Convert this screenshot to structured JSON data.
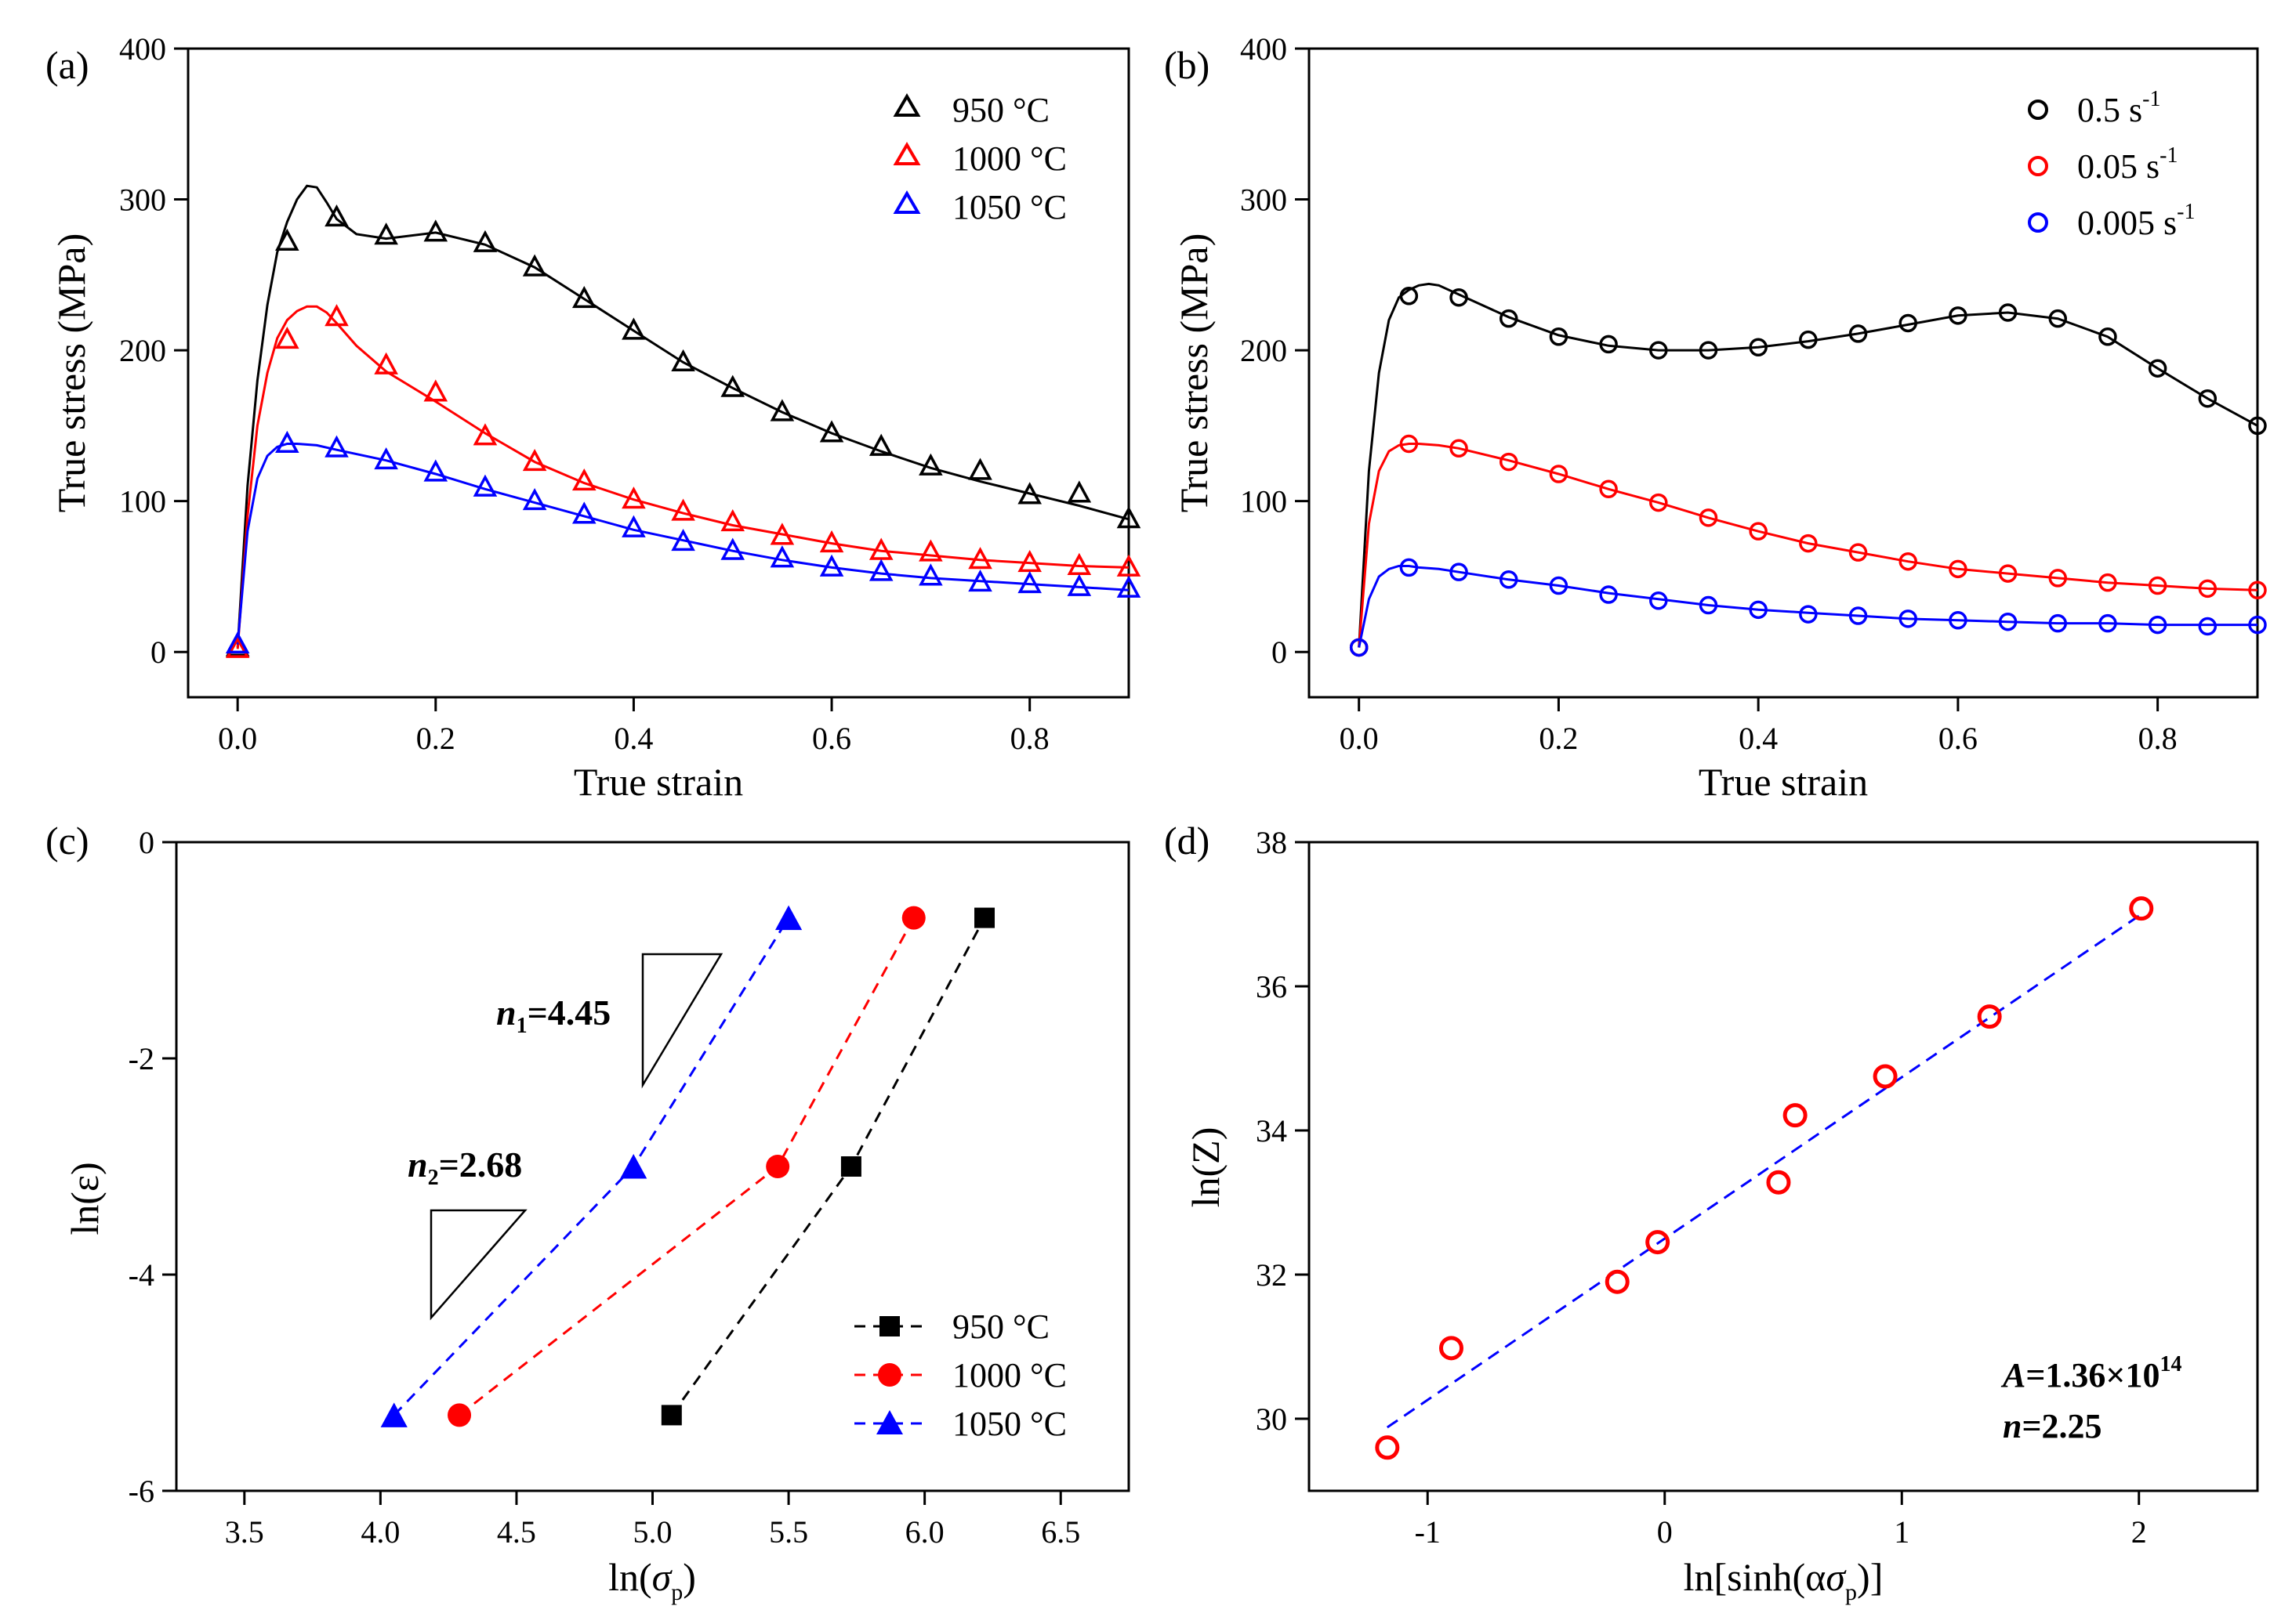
{
  "chart_data": [
    {
      "panel": "(a)",
      "type": "scatter",
      "xlabel": "True strain",
      "ylabel": "True stress (MPa)",
      "xlim": [
        -0.05,
        0.9
      ],
      "ylim": [
        -30,
        400
      ],
      "xticks": [
        "0.0",
        "0.2",
        "0.4",
        "0.6",
        "0.8"
      ],
      "yticks": [
        "0",
        "100",
        "200",
        "300",
        "400"
      ],
      "legend_position": "top-right",
      "marker": "triangle-open",
      "series": [
        {
          "name": "950 °C",
          "color": "#000000",
          "x": [
            0,
            0.05,
            0.1,
            0.15,
            0.2,
            0.25,
            0.3,
            0.35,
            0.4,
            0.45,
            0.5,
            0.55,
            0.6,
            0.65,
            0.7,
            0.75,
            0.8,
            0.85,
            0.9
          ],
          "y": [
            3,
            272,
            288,
            276,
            278,
            271,
            255,
            234,
            213,
            192,
            175,
            159,
            145,
            136,
            123,
            120,
            104,
            105,
            88
          ],
          "curve_x": [
            0,
            0.01,
            0.02,
            0.03,
            0.04,
            0.05,
            0.06,
            0.07,
            0.08,
            0.09,
            0.1,
            0.12,
            0.15,
            0.2,
            0.25,
            0.3,
            0.35,
            0.4,
            0.45,
            0.5,
            0.55,
            0.6,
            0.65,
            0.7,
            0.75,
            0.8,
            0.85,
            0.9
          ],
          "curve_y": [
            3,
            110,
            180,
            230,
            265,
            285,
            300,
            309,
            308,
            298,
            287,
            277,
            274,
            278,
            270,
            255,
            234,
            213,
            192,
            175,
            159,
            145,
            133,
            122,
            113,
            105,
            97,
            88
          ]
        },
        {
          "name": "1000 °C",
          "color": "#ff0000",
          "x": [
            0,
            0.05,
            0.1,
            0.15,
            0.2,
            0.25,
            0.3,
            0.35,
            0.4,
            0.45,
            0.5,
            0.55,
            0.6,
            0.65,
            0.7,
            0.75,
            0.8,
            0.85,
            0.9
          ],
          "y": [
            2,
            207,
            222,
            190,
            172,
            143,
            126,
            113,
            101,
            93,
            86,
            77,
            72,
            67,
            66,
            61,
            59,
            57,
            56
          ],
          "curve_x": [
            0,
            0.01,
            0.02,
            0.03,
            0.04,
            0.05,
            0.06,
            0.07,
            0.08,
            0.09,
            0.1,
            0.12,
            0.15,
            0.2,
            0.25,
            0.3,
            0.35,
            0.4,
            0.45,
            0.5,
            0.55,
            0.6,
            0.65,
            0.7,
            0.75,
            0.8,
            0.85,
            0.9
          ],
          "curve_y": [
            2,
            90,
            150,
            185,
            208,
            220,
            226,
            229,
            229,
            225,
            218,
            203,
            186,
            166,
            145,
            126,
            112,
            101,
            92,
            84,
            78,
            72,
            67,
            64,
            61,
            59,
            57,
            56
          ]
        },
        {
          "name": "1050 °C",
          "color": "#0000ff",
          "x": [
            0,
            0.05,
            0.1,
            0.15,
            0.2,
            0.25,
            0.3,
            0.35,
            0.4,
            0.45,
            0.5,
            0.55,
            0.6,
            0.65,
            0.7,
            0.75,
            0.8,
            0.85,
            0.9
          ],
          "y": [
            5,
            138,
            135,
            127,
            119,
            109,
            100,
            91,
            82,
            73,
            67,
            62,
            56,
            53,
            50,
            46,
            45,
            43,
            42
          ],
          "curve_x": [
            0,
            0.01,
            0.02,
            0.03,
            0.04,
            0.05,
            0.06,
            0.08,
            0.1,
            0.15,
            0.2,
            0.25,
            0.3,
            0.35,
            0.4,
            0.45,
            0.5,
            0.55,
            0.6,
            0.65,
            0.7,
            0.75,
            0.8,
            0.85,
            0.9
          ],
          "curve_y": [
            5,
            80,
            115,
            130,
            136,
            138,
            138,
            137,
            134,
            127,
            118,
            108,
            99,
            90,
            81,
            74,
            67,
            61,
            56,
            52,
            49,
            47,
            45,
            43,
            41
          ]
        }
      ]
    },
    {
      "panel": "(b)",
      "type": "scatter",
      "xlabel": "True strain",
      "ylabel": "True stress (MPa)",
      "xlim": [
        -0.05,
        0.9
      ],
      "ylim": [
        -30,
        400
      ],
      "xticks": [
        "0.0",
        "0.2",
        "0.4",
        "0.6",
        "0.8"
      ],
      "yticks": [
        "0",
        "100",
        "200",
        "300",
        "400"
      ],
      "legend_position": "top-right",
      "marker": "circle-open",
      "series": [
        {
          "name": "0.5 s",
          "unit_sup": "-1",
          "color": "#000000",
          "x": [
            0,
            0.05,
            0.1,
            0.15,
            0.2,
            0.25,
            0.3,
            0.35,
            0.4,
            0.45,
            0.5,
            0.55,
            0.6,
            0.65,
            0.7,
            0.75,
            0.8,
            0.85,
            0.9
          ],
          "y": [
            3,
            236,
            235,
            221,
            209,
            204,
            200,
            200,
            202,
            207,
            211,
            218,
            223,
            225,
            221,
            209,
            188,
            168,
            150
          ],
          "curve_x": [
            0,
            0.01,
            0.02,
            0.03,
            0.04,
            0.05,
            0.06,
            0.07,
            0.08,
            0.1,
            0.15,
            0.2,
            0.25,
            0.3,
            0.35,
            0.4,
            0.45,
            0.5,
            0.55,
            0.6,
            0.65,
            0.7,
            0.75,
            0.8,
            0.85,
            0.9
          ],
          "curve_y": [
            3,
            120,
            185,
            220,
            235,
            240,
            243,
            244,
            243,
            237,
            222,
            210,
            203,
            200,
            200,
            202,
            206,
            211,
            217,
            223,
            225,
            221,
            209,
            188,
            168,
            150
          ]
        },
        {
          "name": "0.05 s",
          "unit_sup": "-1",
          "color": "#ff0000",
          "x": [
            0,
            0.05,
            0.1,
            0.15,
            0.2,
            0.25,
            0.3,
            0.35,
            0.4,
            0.45,
            0.5,
            0.55,
            0.6,
            0.65,
            0.7,
            0.75,
            0.8,
            0.85,
            0.9
          ],
          "y": [
            3,
            138,
            135,
            126,
            118,
            108,
            99,
            89,
            80,
            72,
            66,
            60,
            55,
            52,
            49,
            46,
            44,
            42,
            41
          ],
          "curve_x": [
            0,
            0.01,
            0.02,
            0.03,
            0.04,
            0.05,
            0.06,
            0.08,
            0.1,
            0.15,
            0.2,
            0.25,
            0.3,
            0.35,
            0.4,
            0.45,
            0.5,
            0.55,
            0.6,
            0.65,
            0.7,
            0.75,
            0.8,
            0.85,
            0.9
          ],
          "curve_y": [
            3,
            85,
            120,
            133,
            137,
            138,
            138,
            137,
            135,
            127,
            118,
            108,
            99,
            89,
            80,
            72,
            66,
            60,
            55,
            52,
            49,
            46,
            44,
            42,
            41
          ]
        },
        {
          "name": "0.005 s",
          "unit_sup": "-1",
          "color": "#0000ff",
          "x": [
            0,
            0.05,
            0.1,
            0.15,
            0.2,
            0.25,
            0.3,
            0.35,
            0.4,
            0.45,
            0.5,
            0.55,
            0.6,
            0.65,
            0.7,
            0.75,
            0.8,
            0.85,
            0.9
          ],
          "y": [
            3,
            56,
            53,
            48,
            44,
            38,
            34,
            31,
            28,
            25,
            24,
            22,
            21,
            20,
            19,
            19,
            18,
            17,
            18
          ],
          "curve_x": [
            0,
            0.01,
            0.02,
            0.03,
            0.04,
            0.05,
            0.06,
            0.08,
            0.1,
            0.15,
            0.2,
            0.25,
            0.3,
            0.35,
            0.4,
            0.45,
            0.5,
            0.55,
            0.6,
            0.65,
            0.7,
            0.75,
            0.8,
            0.85,
            0.9
          ],
          "curve_y": [
            3,
            35,
            50,
            55,
            57,
            57,
            56,
            55,
            53,
            48,
            44,
            39,
            35,
            31,
            28,
            26,
            24,
            22,
            21,
            20,
            19,
            19,
            18,
            18,
            18
          ]
        }
      ]
    },
    {
      "panel": "(c)",
      "type": "scatter",
      "xlabel_pre": "ln(",
      "xlabel_sym": "σ",
      "xlabel_sub": "p",
      "xlabel_post": ")",
      "ylabel": "ln(ε)",
      "xlim": [
        3.25,
        6.75
      ],
      "ylim": [
        -6,
        0
      ],
      "xticks": [
        "3.5",
        "4.0",
        "4.5",
        "5.0",
        "5.5",
        "6.0",
        "6.5"
      ],
      "yticks": [
        "0",
        "-2",
        "-4",
        "-6"
      ],
      "legend_position": "bottom-right",
      "series": [
        {
          "name": "950 °C",
          "color": "#000000",
          "marker": "square",
          "x": [
            5.07,
            5.73,
            6.22
          ],
          "y": [
            -5.3,
            -3.0,
            -0.7
          ]
        },
        {
          "name": "1000 °C",
          "color": "#ff0000",
          "marker": "circle",
          "x": [
            4.29,
            5.46,
            5.96
          ],
          "y": [
            -5.3,
            -3.0,
            -0.7
          ]
        },
        {
          "name": "1050 °C",
          "color": "#0000ff",
          "marker": "triangle",
          "x": [
            4.05,
            4.93,
            5.5
          ],
          "y": [
            -5.3,
            -3.0,
            -0.7
          ]
        }
      ],
      "annotations": {
        "n1_sym": "n",
        "n1_sub": "1",
        "n1_val": "=4.45",
        "n2_sym": "n",
        "n2_sub": "2",
        "n2_val": "=2.68"
      }
    },
    {
      "panel": "(d)",
      "type": "scatter",
      "xlabel_pre": "ln[sinh(α",
      "xlabel_sym": "σ",
      "xlabel_sub": "p",
      "xlabel_post": ")]",
      "ylabel": "ln(Z)",
      "xlim": [
        -1.5,
        2.5
      ],
      "ylim": [
        29,
        38
      ],
      "xticks": [
        "-1",
        "0",
        "1",
        "2"
      ],
      "yticks": [
        "30",
        "32",
        "34",
        "36",
        "38"
      ],
      "marker": "circle-open",
      "color": "#ff0000",
      "fit_color": "#0000ff",
      "x": [
        -1.17,
        -0.9,
        -0.2,
        -0.03,
        0.48,
        0.55,
        0.93,
        1.37,
        2.01
      ],
      "y": [
        29.6,
        30.98,
        31.9,
        32.45,
        33.28,
        34.21,
        34.75,
        35.58,
        37.08
      ],
      "fit_line": {
        "x": [
          -1.17,
          2.01
        ],
        "y": [
          29.88,
          37.0
        ]
      },
      "annotations": {
        "a_sym": "A",
        "a_val": "=1.36×10",
        "a_exp": "14",
        "n_sym": "n",
        "n_val": "=2.25"
      }
    }
  ],
  "panel_labels": [
    "(a)",
    "(b)",
    "(c)",
    "(d)"
  ]
}
